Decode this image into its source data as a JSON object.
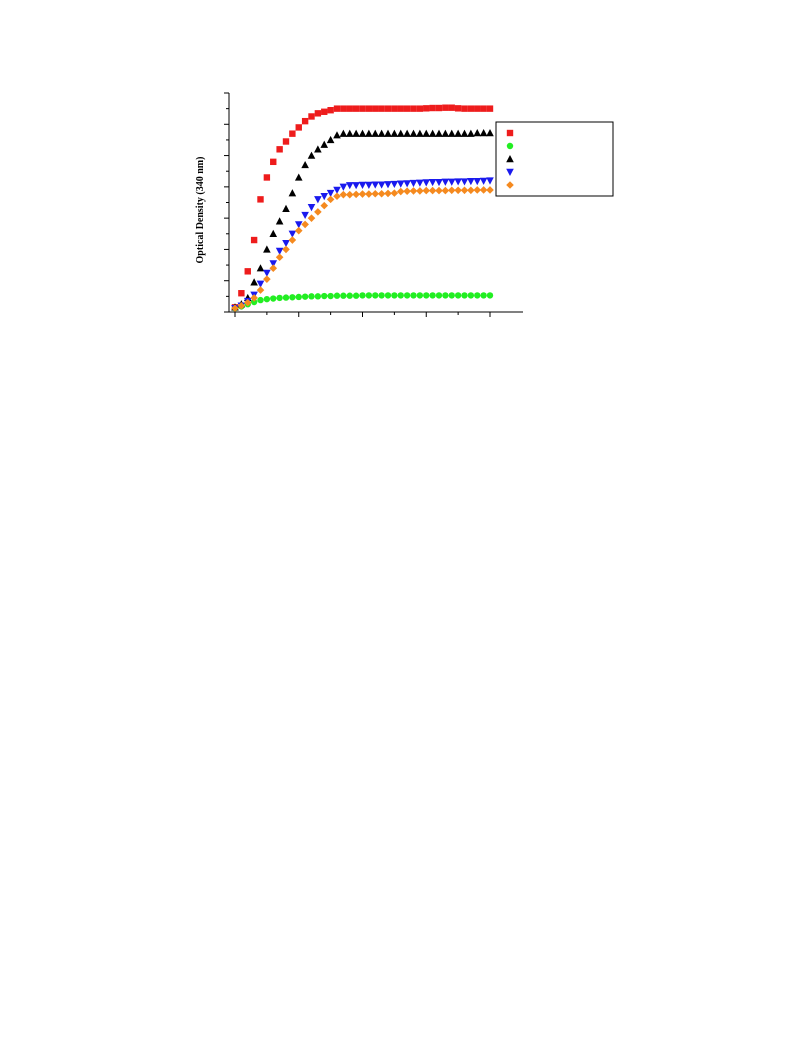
{
  "chart_data": {
    "type": "scatter",
    "title": "",
    "xlabel": "",
    "ylabel": "Optical Density (340 nm)",
    "xlim": [
      -1,
      44
    ],
    "ylim": [
      0,
      0.7
    ],
    "show_tick_labels": false,
    "grid": false,
    "legend": {
      "placement": "right",
      "entries": [
        "",
        "",
        "",
        "",
        ""
      ]
    },
    "series": [
      {
        "marker": "square",
        "color": "#ee1c1c",
        "x": [
          0,
          1,
          2,
          3,
          4,
          5,
          6,
          7,
          8,
          9,
          10,
          11,
          12,
          13,
          14,
          15,
          16,
          17,
          18,
          19,
          20,
          21,
          22,
          23,
          24,
          25,
          26,
          27,
          28,
          29,
          30,
          31,
          32,
          33,
          34,
          35,
          36,
          37,
          38,
          39,
          40
        ],
        "y": [
          0.015,
          0.06,
          0.13,
          0.23,
          0.36,
          0.43,
          0.48,
          0.52,
          0.545,
          0.57,
          0.59,
          0.61,
          0.625,
          0.635,
          0.64,
          0.645,
          0.65,
          0.65,
          0.65,
          0.65,
          0.65,
          0.65,
          0.65,
          0.65,
          0.65,
          0.65,
          0.65,
          0.65,
          0.65,
          0.65,
          0.651,
          0.652,
          0.652,
          0.653,
          0.653,
          0.651,
          0.65,
          0.65,
          0.65,
          0.65,
          0.65
        ]
      },
      {
        "marker": "circle",
        "color": "#22ee22",
        "x": [
          0,
          1,
          2,
          3,
          4,
          5,
          6,
          7,
          8,
          9,
          10,
          11,
          12,
          13,
          14,
          15,
          16,
          17,
          18,
          19,
          20,
          21,
          22,
          23,
          24,
          25,
          26,
          27,
          28,
          29,
          30,
          31,
          32,
          33,
          34,
          35,
          36,
          37,
          38,
          39,
          40
        ],
        "y": [
          0.012,
          0.018,
          0.025,
          0.032,
          0.038,
          0.041,
          0.043,
          0.045,
          0.046,
          0.047,
          0.048,
          0.049,
          0.05,
          0.05,
          0.051,
          0.051,
          0.052,
          0.052,
          0.052,
          0.052,
          0.053,
          0.053,
          0.053,
          0.053,
          0.053,
          0.053,
          0.053,
          0.053,
          0.053,
          0.053,
          0.053,
          0.053,
          0.053,
          0.053,
          0.053,
          0.053,
          0.053,
          0.053,
          0.053,
          0.053,
          0.053
        ]
      },
      {
        "marker": "triangle-up",
        "color": "#000000",
        "x": [
          0,
          1,
          2,
          3,
          4,
          5,
          6,
          7,
          8,
          9,
          10,
          11,
          12,
          13,
          14,
          15,
          16,
          17,
          18,
          19,
          20,
          21,
          22,
          23,
          24,
          25,
          26,
          27,
          28,
          29,
          30,
          31,
          32,
          33,
          34,
          35,
          36,
          37,
          38,
          39,
          40
        ],
        "y": [
          0.015,
          0.025,
          0.045,
          0.095,
          0.14,
          0.2,
          0.25,
          0.29,
          0.33,
          0.38,
          0.43,
          0.47,
          0.5,
          0.52,
          0.535,
          0.55,
          0.565,
          0.57,
          0.57,
          0.57,
          0.57,
          0.57,
          0.57,
          0.57,
          0.57,
          0.57,
          0.57,
          0.57,
          0.57,
          0.57,
          0.57,
          0.57,
          0.57,
          0.57,
          0.57,
          0.57,
          0.57,
          0.57,
          0.572,
          0.572,
          0.572
        ]
      },
      {
        "marker": "triangle-down",
        "color": "#1a1aee",
        "x": [
          0,
          1,
          2,
          3,
          4,
          5,
          6,
          7,
          8,
          9,
          10,
          11,
          12,
          13,
          14,
          15,
          16,
          17,
          18,
          19,
          20,
          21,
          22,
          23,
          24,
          25,
          26,
          27,
          28,
          29,
          30,
          31,
          32,
          33,
          34,
          35,
          36,
          37,
          38,
          39,
          40
        ],
        "y": [
          0.012,
          0.02,
          0.035,
          0.055,
          0.09,
          0.125,
          0.155,
          0.195,
          0.22,
          0.25,
          0.28,
          0.31,
          0.335,
          0.36,
          0.37,
          0.38,
          0.39,
          0.4,
          0.405,
          0.405,
          0.406,
          0.406,
          0.407,
          0.407,
          0.408,
          0.409,
          0.41,
          0.411,
          0.412,
          0.413,
          0.414,
          0.415,
          0.415,
          0.416,
          0.416,
          0.417,
          0.417,
          0.418,
          0.418,
          0.419,
          0.42
        ]
      },
      {
        "marker": "diamond",
        "color": "#f58a1f",
        "x": [
          0,
          1,
          2,
          3,
          4,
          5,
          6,
          7,
          8,
          9,
          10,
          11,
          12,
          13,
          14,
          15,
          16,
          17,
          18,
          19,
          20,
          21,
          22,
          23,
          24,
          25,
          26,
          27,
          28,
          29,
          30,
          31,
          32,
          33,
          34,
          35,
          36,
          37,
          38,
          39,
          40
        ],
        "y": [
          0.012,
          0.02,
          0.03,
          0.045,
          0.07,
          0.105,
          0.14,
          0.175,
          0.2,
          0.23,
          0.26,
          0.28,
          0.3,
          0.32,
          0.34,
          0.36,
          0.37,
          0.375,
          0.375,
          0.376,
          0.377,
          0.377,
          0.378,
          0.378,
          0.379,
          0.38,
          0.385,
          0.386,
          0.387,
          0.387,
          0.388,
          0.388,
          0.388,
          0.388,
          0.389,
          0.389,
          0.389,
          0.389,
          0.39,
          0.39,
          0.39
        ]
      }
    ]
  }
}
